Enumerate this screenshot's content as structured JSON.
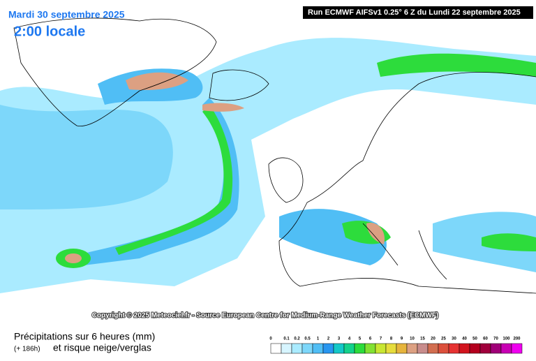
{
  "header": {
    "date": "Mardi 30 septembre 2025",
    "time": "2:00 locale",
    "run": "Run ECMWF AIFSv1 0.25° 6 Z du Lundi 22 septembre 2025"
  },
  "copyright": "Copyright © 2025 Meteociel.fr - Source European Centre for Medium-Range Weather Forecasts (ECMWF)",
  "footer": {
    "title": "Précipitations sur 6 heures (mm)",
    "lead": "(+ 186h)",
    "subtitle": "et risque neige/verglas"
  },
  "legend": {
    "labels": [
      "0",
      "0.1",
      "0.2",
      "0.5",
      "1",
      "2",
      "3",
      "4",
      "5",
      "6",
      "7",
      "8",
      "9",
      "10",
      "15",
      "20",
      "25",
      "30",
      "40",
      "50",
      "60",
      "70",
      "100",
      "200"
    ],
    "colors": [
      "#ffffff",
      "#d7f5ff",
      "#aaebff",
      "#7dd7fa",
      "#50bef5",
      "#2896f0",
      "#14c8c8",
      "#14d28c",
      "#2ddc3c",
      "#82e132",
      "#c8e632",
      "#e6dc3c",
      "#e6b43c",
      "#dca082",
      "#c88c8c",
      "#d26e50",
      "#dc503c",
      "#e63232",
      "#d2141e",
      "#b4001e",
      "#a0003c",
      "#a00078",
      "#c800b4",
      "#f000f0"
    ]
  }
}
